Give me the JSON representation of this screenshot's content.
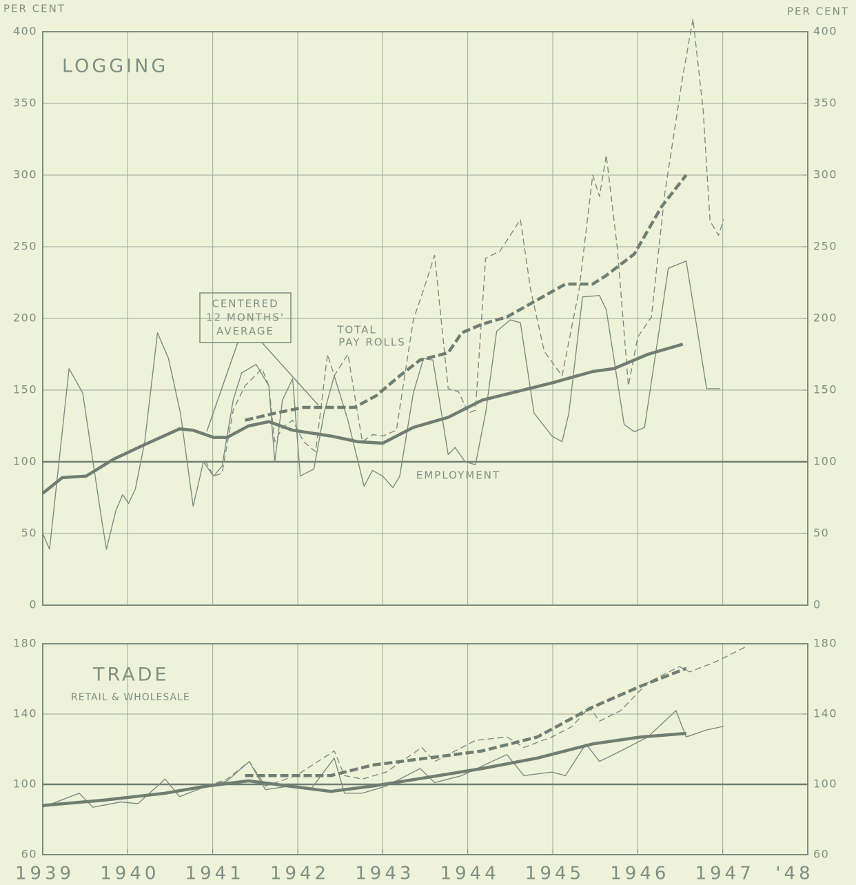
{
  "chart_data": [
    {
      "type": "line",
      "ylabel": "PER CENT",
      "y2label": "PER CENT",
      "title": "LOGGING",
      "box_label": [
        "CENTERED",
        "12 MONTHS'",
        "AVERAGE"
      ],
      "series_label": [
        "TOTAL",
        "PAY ROLLS"
      ],
      "line_label": "EMPLOYMENT",
      "xlim": [
        1939,
        1948
      ],
      "ylim": [
        0,
        400
      ],
      "yticks": [
        0,
        50,
        100,
        150,
        200,
        250,
        300,
        350,
        400
      ],
      "y2lim": [
        0,
        400
      ],
      "y2ticks": [
        0,
        50,
        100,
        150,
        200,
        250,
        300,
        350,
        400
      ],
      "grid": true,
      "reference_line": 100,
      "series": [
        {
          "color": "#7d8c80",
          "style": "solid",
          "weight": "thin",
          "x": [
            1939.0,
            1939.08,
            1939.31,
            1939.47,
            1939.7,
            1939.75,
            1939.86,
            1939.94,
            1940.01,
            1940.09,
            1940.2,
            1940.35,
            1940.48,
            1940.62,
            1940.77,
            1940.89,
            1941.01,
            1941.11,
            1941.24,
            1941.34,
            1941.51,
            1941.66,
            1941.73,
            1941.82,
            1941.94,
            1942.03,
            1942.19,
            1942.31,
            1942.43,
            1942.59,
            1942.78,
            1942.88,
            1943.0,
            1943.12,
            1943.2,
            1943.36,
            1943.48,
            1943.59,
            1943.77,
            1943.85,
            1943.97,
            1944.09,
            1944.21,
            1944.34,
            1944.5,
            1944.62,
            1944.78,
            1944.99,
            1945.11,
            1945.19,
            1945.35,
            1945.55,
            1945.63,
            1945.84,
            1945.96,
            1946.08,
            1946.24,
            1946.36,
            1946.57,
            1946.69,
            1946.81,
            1946.97
          ],
          "values": [
            50,
            39,
            165,
            148,
            57,
            39,
            66,
            77,
            71,
            81,
            114,
            190,
            172,
            134,
            69,
            100,
            90,
            97,
            143,
            162,
            168,
            153,
            100,
            143,
            158,
            90,
            95,
            134,
            160,
            129,
            83,
            94,
            90,
            82,
            90,
            148,
            172,
            171,
            105,
            110,
            100,
            98,
            134,
            191,
            199,
            197,
            134,
            118,
            114,
            134,
            215,
            216,
            206,
            126,
            121,
            124,
            187,
            235,
            240,
            196,
            151,
            151
          ]
        },
        {
          "color": "#7d8c80",
          "style": "dashed",
          "weight": "thin",
          "x": [
            1940.91,
            1941.01,
            1941.11,
            1941.24,
            1941.38,
            1941.58,
            1941.66,
            1941.73,
            1941.82,
            1941.94,
            1942.07,
            1942.21,
            1942.35,
            1942.43,
            1942.59,
            1942.76,
            1942.88,
            1943.0,
            1943.16,
            1943.36,
            1943.48,
            1943.61,
            1943.77,
            1943.89,
            1944.01,
            1944.09,
            1944.21,
            1944.38,
            1944.62,
            1944.74,
            1944.9,
            1945.11,
            1945.31,
            1945.47,
            1945.55,
            1945.63,
            1945.76,
            1945.89,
            1946.0,
            1946.16,
            1946.32,
            1946.53,
            1946.65,
            1946.77,
            1946.85,
            1946.95,
            1947.01
          ],
          "values": [
            101,
            90,
            92,
            136,
            153,
            165,
            153,
            114,
            124,
            129,
            114,
            107,
            175,
            160,
            175,
            114,
            119,
            118,
            122,
            199,
            220,
            244,
            151,
            149,
            134,
            136,
            242,
            247,
            269,
            220,
            177,
            160,
            220,
            300,
            285,
            314,
            249,
            153,
            187,
            201,
            288,
            369,
            409,
            345,
            268,
            258,
            269
          ]
        },
        {
          "color": "#6f7e73",
          "style": "solid",
          "weight": "thick",
          "x": [
            1939.0,
            1939.23,
            1939.51,
            1939.84,
            1940.2,
            1940.61,
            1940.77,
            1941.01,
            1941.17,
            1941.42,
            1941.66,
            1941.94,
            1942.39,
            1942.71,
            1943.0,
            1943.36,
            1943.77,
            1944.17,
            1944.58,
            1944.99,
            1945.47,
            1945.72,
            1946.12,
            1946.53
          ],
          "values": [
            78,
            89,
            90,
            102,
            112,
            123,
            122,
            117,
            117,
            125,
            128,
            122,
            118,
            114,
            113,
            124,
            131,
            143,
            149,
            155,
            163,
            165,
            175,
            182
          ]
        },
        {
          "color": "#6f7e73",
          "style": "dashed",
          "weight": "thick",
          "x": [
            1941.38,
            1941.74,
            1942.07,
            1942.31,
            1942.67,
            1942.92,
            1943.2,
            1943.44,
            1943.77,
            1943.93,
            1944.17,
            1944.46,
            1944.82,
            1945.15,
            1945.47,
            1945.63,
            1945.96,
            1946.28,
            1946.57
          ],
          "values": [
            129,
            134,
            138,
            138,
            138,
            146,
            160,
            171,
            176,
            190,
            196,
            201,
            213,
            224,
            224,
            230,
            245,
            278,
            300
          ]
        }
      ]
    },
    {
      "type": "line",
      "title": "TRADE",
      "subtitle": "RETAIL & WHOLESALE",
      "xlim": [
        1939,
        1948
      ],
      "xticks": [
        1939,
        1940,
        1941,
        1942,
        1943,
        1944,
        1945,
        1946,
        1947,
        {
          "value": 1948,
          "label": "'48"
        }
      ],
      "ylim": [
        60,
        180
      ],
      "yticks": [
        60,
        100,
        140,
        180
      ],
      "y2lim": [
        60,
        180
      ],
      "y2ticks": [
        60,
        100,
        140,
        180
      ],
      "grid": true,
      "reference_line": 100,
      "series": [
        {
          "color": "#7d8c80",
          "style": "solid",
          "weight": "thin",
          "x": [
            1939.0,
            1939.43,
            1939.59,
            1939.92,
            1940.12,
            1940.44,
            1940.61,
            1940.93,
            1941.17,
            1941.43,
            1941.62,
            1941.9,
            1942.15,
            1942.43,
            1942.55,
            1942.76,
            1943.04,
            1943.44,
            1943.61,
            1943.93,
            1944.46,
            1944.66,
            1944.99,
            1945.15,
            1945.39,
            1945.55,
            1945.8,
            1946.12,
            1946.45,
            1946.57,
            1946.81,
            1947.01
          ],
          "values": [
            87,
            95,
            87,
            90,
            89,
            103,
            93,
            99,
            102,
            113,
            97,
            99,
            97,
            115,
            95,
            95,
            99,
            109,
            101,
            105,
            117,
            105,
            107,
            105,
            123,
            113,
            119,
            127,
            142,
            127,
            131,
            133
          ]
        },
        {
          "color": "#7d8c80",
          "style": "dashed",
          "weight": "thin",
          "x": [
            1940.93,
            1941.17,
            1941.43,
            1941.62,
            1941.98,
            1942.43,
            1942.55,
            1942.76,
            1943.04,
            1943.46,
            1943.61,
            1944.09,
            1944.46,
            1944.66,
            1944.99,
            1945.23,
            1945.43,
            1945.55,
            1945.8,
            1946.12,
            1946.49,
            1946.61,
            1946.93,
            1947.26
          ],
          "values": [
            99,
            103,
            113,
            99,
            105,
            119,
            105,
            103,
            107,
            121,
            113,
            125,
            127,
            121,
            127,
            133,
            144,
            136,
            142,
            158,
            167,
            164,
            170,
            178
          ]
        },
        {
          "color": "#6f7e73",
          "style": "solid",
          "weight": "thick",
          "x": [
            1939.0,
            1939.71,
            1940.44,
            1940.93,
            1941.42,
            1941.9,
            1942.39,
            1942.88,
            1943.53,
            1944.17,
            1944.82,
            1945.47,
            1946.04,
            1946.57
          ],
          "values": [
            88,
            91,
            95,
            99,
            102,
            99,
            96,
            99,
            104,
            109,
            115,
            123,
            127,
            129
          ]
        },
        {
          "color": "#6f7e73",
          "style": "dashed",
          "weight": "thick",
          "x": [
            1941.38,
            1942.39,
            1942.88,
            1943.53,
            1944.17,
            1944.82,
            1945.47,
            1946.04,
            1946.57
          ],
          "values": [
            105,
            105,
            111,
            115,
            119,
            127,
            144,
            156,
            166
          ]
        }
      ]
    }
  ]
}
